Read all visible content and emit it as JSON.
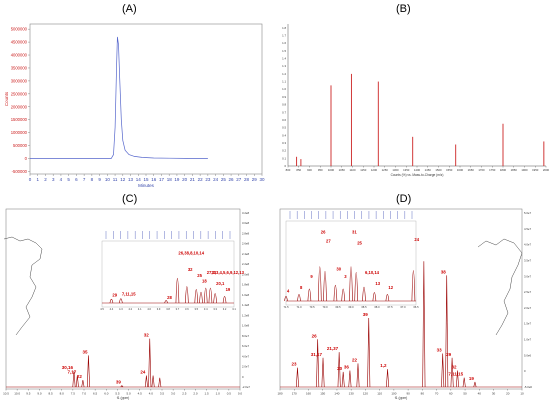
{
  "panel_labels": [
    "(A)",
    "(B)",
    "(C)",
    "(D)"
  ],
  "chart_data": [
    {
      "id": "A",
      "type": "line",
      "xlabel": "Minutes",
      "ylabel": "Counts",
      "x_ticks": [
        0,
        1,
        2,
        3,
        4,
        5,
        6,
        7,
        8,
        9,
        10,
        11,
        12,
        13,
        14,
        15,
        16,
        17,
        18,
        19,
        20,
        21,
        22,
        23,
        24,
        25,
        26,
        27,
        28,
        29,
        30
      ],
      "y_ticks": [
        "-500000",
        "0",
        "500000",
        "1000000",
        "1500000",
        "2000000",
        "2500000",
        "3000000",
        "3500000",
        "4000000",
        "4500000",
        "5000000"
      ],
      "xlim": [
        0,
        30
      ],
      "ylim": [
        -600000,
        5200000
      ],
      "peak": {
        "x": 11.3,
        "y": 4700000
      },
      "x": [
        0,
        10.5,
        10.8,
        11.0,
        11.2,
        11.3,
        11.45,
        11.6,
        11.8,
        12.0,
        12.3,
        12.8,
        13.5,
        14.5,
        16,
        18,
        20,
        23
      ],
      "y": [
        0,
        0,
        150000,
        1200000,
        3600000,
        4700000,
        4400000,
        3100000,
        1500000,
        700000,
        320000,
        150000,
        80000,
        40000,
        20000,
        10000,
        5000,
        0
      ],
      "line_color": "#5566cc"
    },
    {
      "id": "B",
      "type": "bar",
      "xlabel": "Counts (%) vs. Mass-to-Charge (m/z)",
      "ylabel": "",
      "xlim": [
        800,
        2000
      ],
      "x_ticks": [
        800,
        850,
        900,
        950,
        1000,
        1050,
        1100,
        1150,
        1200,
        1250,
        1300,
        1350,
        1400,
        1450,
        1500,
        1550,
        1600,
        1650,
        1700,
        1750,
        1800,
        1850,
        1900,
        1950,
        2000
      ],
      "y_ticks": [
        "1.8",
        "1.7",
        "1.6",
        "1.5",
        "1.4",
        "1.3",
        "1.2",
        "1.1",
        "1.0",
        "0.9",
        "0.8",
        "0.7",
        "0.6",
        "0.5",
        "0.4",
        "0.3",
        "0.2",
        "0.1",
        "0"
      ],
      "ylim": [
        0,
        1.85
      ],
      "x": [
        840,
        860,
        1000,
        1095,
        1220,
        1380,
        1580,
        1800,
        1990
      ],
      "values": [
        0.12,
        0.09,
        1.05,
        1.2,
        1.1,
        0.38,
        0.28,
        0.55,
        0.32
      ],
      "bar_color": "#cc2222"
    },
    {
      "id": "C",
      "type": "line",
      "xlabel": "f1 (ppm)",
      "x_ticks": [
        "10.5",
        "10.0",
        "9.5",
        "9.0",
        "8.5",
        "8.0",
        "7.5",
        "7.0",
        "6.5",
        "6.0",
        "5.5",
        "5.0",
        "4.5",
        "4.0",
        "3.5",
        "3.0",
        "2.5",
        "2.0",
        "1.5",
        "1.0",
        "0.5",
        "0.0"
      ],
      "right_ticks": [
        "3.2e8",
        "3.0e8",
        "2.8e8",
        "2.6e8",
        "2.4e8",
        "2.2e8",
        "2.0e8",
        "1.8e8",
        "1.6e8",
        "1.4e8",
        "1.2e8",
        "1.0e8",
        "8.0e7",
        "6.0e7",
        "4.0e7",
        "2.0e7",
        "0",
        "-2.0e7"
      ],
      "xlim": [
        10.5,
        0.0
      ],
      "ylim": [
        0,
        1
      ],
      "peaks": [
        {
          "ppm": 7.45,
          "h": 0.16,
          "label": "30,16"
        },
        {
          "ppm": 7.3,
          "h": 0.12,
          "label": "7,17"
        },
        {
          "ppm": 7.05,
          "h": 0.08,
          "label": "22"
        },
        {
          "ppm": 6.8,
          "h": 0.3,
          "label": "35"
        },
        {
          "ppm": 5.3,
          "h": 0.03,
          "label": "39"
        },
        {
          "ppm": 4.2,
          "h": 0.12,
          "label": "24"
        },
        {
          "ppm": 4.05,
          "h": 0.45,
          "label": "32"
        },
        {
          "ppm": 3.9,
          "h": 0.12,
          "label": ""
        },
        {
          "ppm": 3.6,
          "h": 0.1,
          "label": ""
        }
      ],
      "inset_peaks": [
        {
          "ppm": 4.4,
          "h": 0.1,
          "label": "29"
        },
        {
          "ppm": 4.3,
          "h": 0.12,
          "label": "7,11,15"
        },
        {
          "ppm": 3.82,
          "h": 0.05,
          "label": "28"
        },
        {
          "ppm": 3.7,
          "h": 0.85,
          "label": "26,38,8,10,14"
        },
        {
          "ppm": 3.6,
          "h": 0.55,
          "label": "32"
        },
        {
          "ppm": 3.5,
          "h": 0.45,
          "label": "25"
        },
        {
          "ppm": 3.45,
          "h": 0.35,
          "label": "18"
        },
        {
          "ppm": 3.4,
          "h": 0.5,
          "label": "27,2,3,4,5,6,9,12,13"
        },
        {
          "ppm": 3.35,
          "h": 0.5,
          "label": "23"
        },
        {
          "ppm": 3.3,
          "h": 0.3,
          "label": "20,1"
        },
        {
          "ppm": 3.2,
          "h": 0.2,
          "label": "19"
        }
      ],
      "inset_ticks": [
        "4.5",
        "4.4",
        "4.3",
        "4.2",
        "4.1",
        "4.0",
        "3.9",
        "3.8",
        "3.7",
        "3.6",
        "3.5",
        "3.4",
        "3.3",
        "3.2",
        "3.1"
      ],
      "line_color": "#990000"
    },
    {
      "id": "D",
      "type": "line",
      "xlabel": "f1 (ppm)",
      "x_ticks": [
        "180",
        "170",
        "160",
        "150",
        "140",
        "130",
        "120",
        "110",
        "100",
        "90",
        "80",
        "70",
        "60",
        "50",
        "40",
        "30",
        "20",
        "10"
      ],
      "right_ticks": [
        "5.0e7",
        "4.5e7",
        "4.0e7",
        "3.5e7",
        "3.0e7",
        "2.5e7",
        "2.0e7",
        "1.5e7",
        "1.0e7",
        "5.0e6",
        "0",
        "-5.0e6"
      ],
      "xlim": [
        185,
        5
      ],
      "ylim": [
        0,
        1
      ],
      "peaks": [
        {
          "ppm": 172,
          "h": 0.15,
          "label": "23"
        },
        {
          "ppm": 157,
          "h": 0.35,
          "label": "26"
        },
        {
          "ppm": 153,
          "h": 0.22,
          "label": "31,17"
        },
        {
          "ppm": 141,
          "h": 0.26,
          "label": "21,37"
        },
        {
          "ppm": 138,
          "h": 0.12,
          "label": "20"
        },
        {
          "ppm": 133,
          "h": 0.13,
          "label": "36"
        },
        {
          "ppm": 127,
          "h": 0.18,
          "label": "22"
        },
        {
          "ppm": 119,
          "h": 0.5,
          "label": "39"
        },
        {
          "ppm": 105,
          "h": 0.14,
          "label": "1,2"
        },
        {
          "ppm": 78,
          "h": 0.9,
          "label": ""
        },
        {
          "ppm": 61,
          "h": 0.8,
          "label": "38"
        },
        {
          "ppm": 64,
          "h": 0.25,
          "label": "33"
        },
        {
          "ppm": 57,
          "h": 0.22,
          "label": "29"
        },
        {
          "ppm": 53,
          "h": 0.13,
          "label": "32"
        },
        {
          "ppm": 48,
          "h": 0.08,
          "label": "7,11,15"
        },
        {
          "ppm": 40,
          "h": 0.05,
          "label": "19"
        }
      ],
      "inset_peaks": [
        {
          "ppm": 71.5,
          "h": 0.1,
          "label": "4"
        },
        {
          "ppm": 71.0,
          "h": 0.15,
          "label": "8"
        },
        {
          "ppm": 70.6,
          "h": 0.3,
          "label": "9"
        },
        {
          "ppm": 70.2,
          "h": 0.9,
          "label": "26"
        },
        {
          "ppm": 70.0,
          "h": 0.78,
          "label": "27"
        },
        {
          "ppm": 69.6,
          "h": 0.4,
          "label": "30"
        },
        {
          "ppm": 69.3,
          "h": 0.3,
          "label": "3"
        },
        {
          "ppm": 69.0,
          "h": 0.9,
          "label": "31"
        },
        {
          "ppm": 68.8,
          "h": 0.75,
          "label": "25"
        },
        {
          "ppm": 68.5,
          "h": 0.35,
          "label": "6,10,14"
        },
        {
          "ppm": 68.1,
          "h": 0.2,
          "label": "13"
        },
        {
          "ppm": 67.6,
          "h": 0.15,
          "label": "12"
        },
        {
          "ppm": 66.6,
          "h": 0.8,
          "label": "24"
        }
      ],
      "inset_ticks": [
        "71.5",
        "71.0",
        "70.5",
        "70.0",
        "69.5",
        "69.0",
        "68.5",
        "68.0",
        "67.5",
        "67.0",
        "66.5"
      ],
      "line_color": "#990000"
    }
  ]
}
